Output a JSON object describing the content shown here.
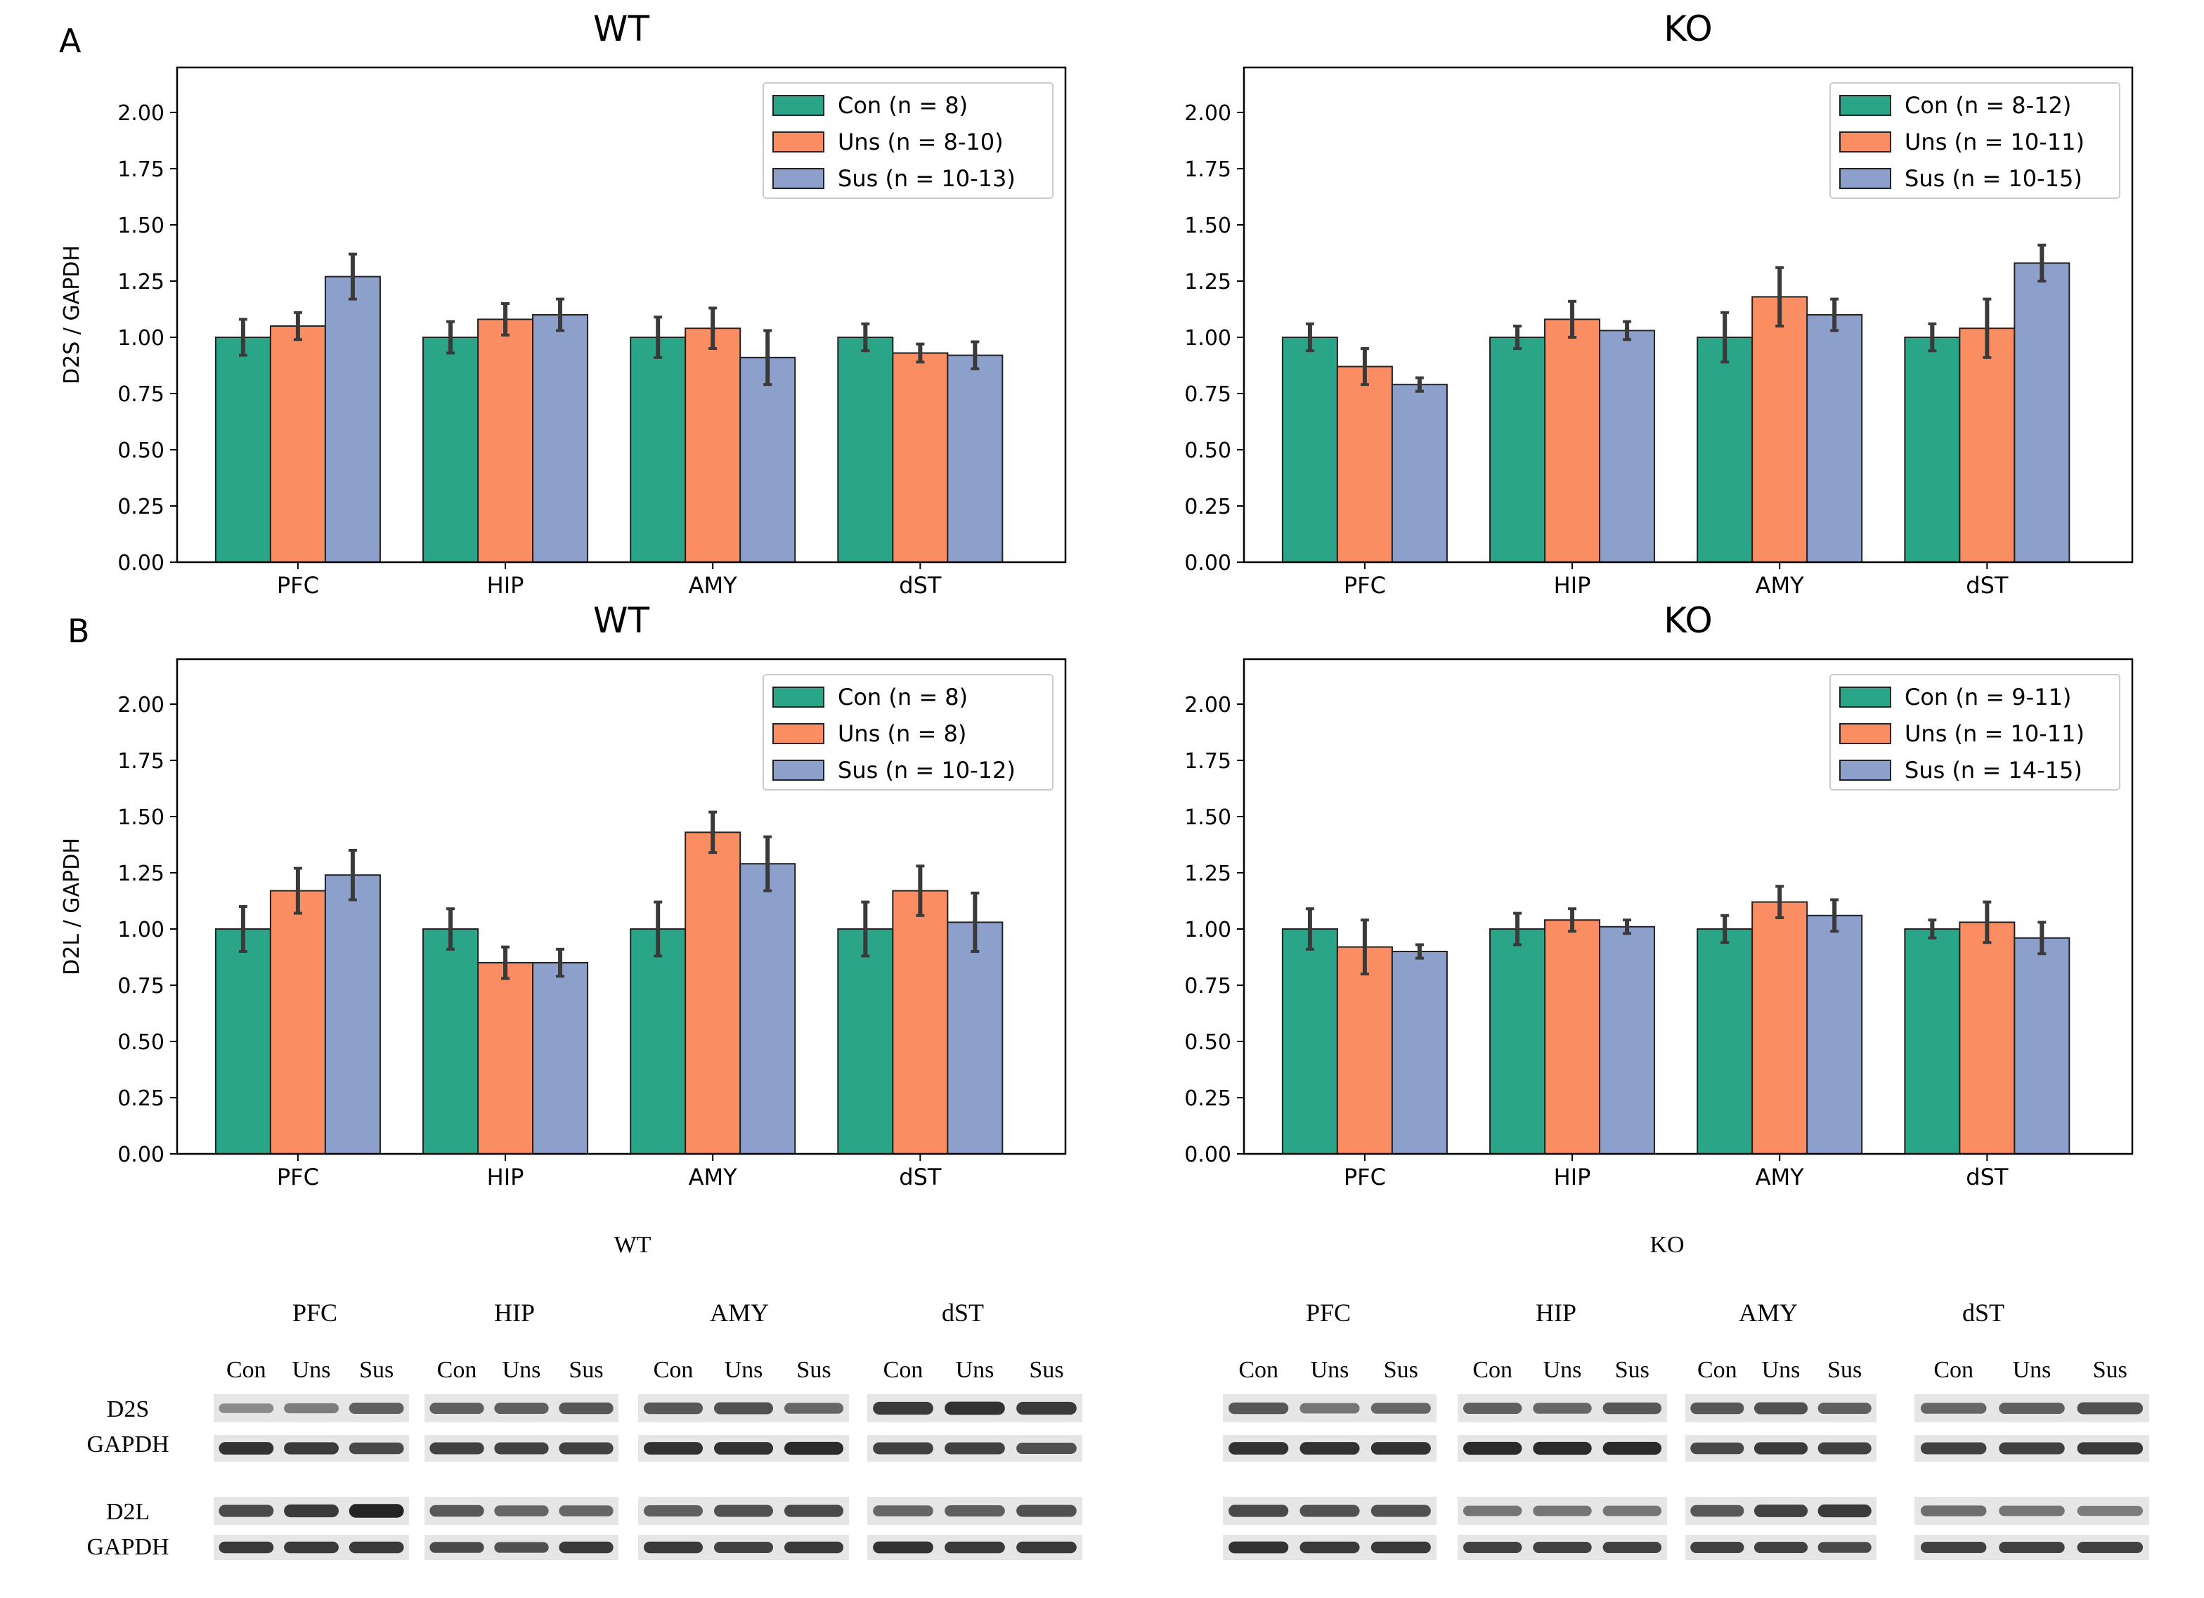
{
  "panel_letters": [
    "A",
    "B"
  ],
  "colors": {
    "con": "#2aa587",
    "uns": "#fb8d62",
    "sus": "#8da0cb",
    "axis": "#000000",
    "err": "#3a3a3a"
  },
  "chart_data": [
    {
      "type": "bar",
      "title": "WT",
      "ylabel": "D2S / GAPDH",
      "ylim": [
        0,
        2.2
      ],
      "yticks": [
        "0.00",
        "0.25",
        "0.50",
        "0.75",
        "1.00",
        "1.25",
        "1.50",
        "1.75",
        "2.00"
      ],
      "categories": [
        "PFC",
        "HIP",
        "AMY",
        "dST"
      ],
      "legend_position": "top-right",
      "series": [
        {
          "name": "Con (n = 8)",
          "values": [
            1.0,
            1.0,
            1.0,
            1.0
          ],
          "errors": [
            0.08,
            0.07,
            0.09,
            0.06
          ]
        },
        {
          "name": "Uns (n = 8-10)",
          "values": [
            1.05,
            1.08,
            1.04,
            0.93
          ],
          "errors": [
            0.06,
            0.07,
            0.09,
            0.04
          ]
        },
        {
          "name": "Sus (n = 10-13)",
          "values": [
            1.27,
            1.1,
            0.91,
            0.92
          ],
          "errors": [
            0.1,
            0.07,
            0.12,
            0.06
          ]
        }
      ]
    },
    {
      "type": "bar",
      "title": "KO",
      "ylabel": "",
      "ylim": [
        0,
        2.2
      ],
      "yticks": [
        "0.00",
        "0.25",
        "0.50",
        "0.75",
        "1.00",
        "1.25",
        "1.50",
        "1.75",
        "2.00"
      ],
      "categories": [
        "PFC",
        "HIP",
        "AMY",
        "dST"
      ],
      "legend_position": "top-right",
      "series": [
        {
          "name": "Con (n = 8-12)",
          "values": [
            1.0,
            1.0,
            1.0,
            1.0
          ],
          "errors": [
            0.06,
            0.05,
            0.11,
            0.06
          ]
        },
        {
          "name": "Uns (n = 10-11)",
          "values": [
            0.87,
            1.08,
            1.18,
            1.04
          ],
          "errors": [
            0.08,
            0.08,
            0.13,
            0.13
          ]
        },
        {
          "name": "Sus (n = 10-15)",
          "values": [
            0.79,
            1.03,
            1.1,
            1.33
          ],
          "errors": [
            0.03,
            0.04,
            0.07,
            0.08
          ]
        }
      ]
    },
    {
      "type": "bar",
      "title": "WT",
      "ylabel": "D2L / GAPDH",
      "ylim": [
        0,
        2.2
      ],
      "yticks": [
        "0.00",
        "0.25",
        "0.50",
        "0.75",
        "1.00",
        "1.25",
        "1.50",
        "1.75",
        "2.00"
      ],
      "categories": [
        "PFC",
        "HIP",
        "AMY",
        "dST"
      ],
      "legend_position": "top-right",
      "series": [
        {
          "name": "Con (n = 8)",
          "values": [
            1.0,
            1.0,
            1.0,
            1.0
          ],
          "errors": [
            0.1,
            0.09,
            0.12,
            0.12
          ]
        },
        {
          "name": "Uns (n = 8)",
          "values": [
            1.17,
            0.85,
            1.43,
            1.17
          ],
          "errors": [
            0.1,
            0.07,
            0.09,
            0.11
          ]
        },
        {
          "name": "Sus (n = 10-12)",
          "values": [
            1.24,
            0.85,
            1.29,
            1.03
          ],
          "errors": [
            0.11,
            0.06,
            0.12,
            0.13
          ]
        }
      ]
    },
    {
      "type": "bar",
      "title": "KO",
      "ylabel": "",
      "ylim": [
        0,
        2.2
      ],
      "yticks": [
        "0.00",
        "0.25",
        "0.50",
        "0.75",
        "1.00",
        "1.25",
        "1.50",
        "1.75",
        "2.00"
      ],
      "categories": [
        "PFC",
        "HIP",
        "AMY",
        "dST"
      ],
      "legend_position": "top-right",
      "series": [
        {
          "name": "Con (n = 9-11)",
          "values": [
            1.0,
            1.0,
            1.0,
            1.0
          ],
          "errors": [
            0.09,
            0.07,
            0.06,
            0.04
          ]
        },
        {
          "name": "Uns (n = 10-11)",
          "values": [
            0.92,
            1.04,
            1.12,
            1.03
          ],
          "errors": [
            0.12,
            0.05,
            0.07,
            0.09
          ]
        },
        {
          "name": "Sus (n = 14-15)",
          "values": [
            0.9,
            1.01,
            1.06,
            0.96
          ],
          "errors": [
            0.03,
            0.03,
            0.07,
            0.07
          ]
        }
      ]
    }
  ],
  "blots": [
    {
      "group": "WT",
      "regions": [
        "PFC",
        "HIP",
        "AMY",
        "dST"
      ],
      "lanes": [
        "Con",
        "Uns",
        "Sus"
      ],
      "row_labels": [
        "D2S",
        "GAPDH",
        "D2L",
        "GAPDH"
      ]
    },
    {
      "group": "KO",
      "regions": [
        "PFC",
        "HIP",
        "AMY",
        "dST"
      ],
      "lanes": [
        "Con",
        "Uns",
        "Sus"
      ]
    }
  ]
}
